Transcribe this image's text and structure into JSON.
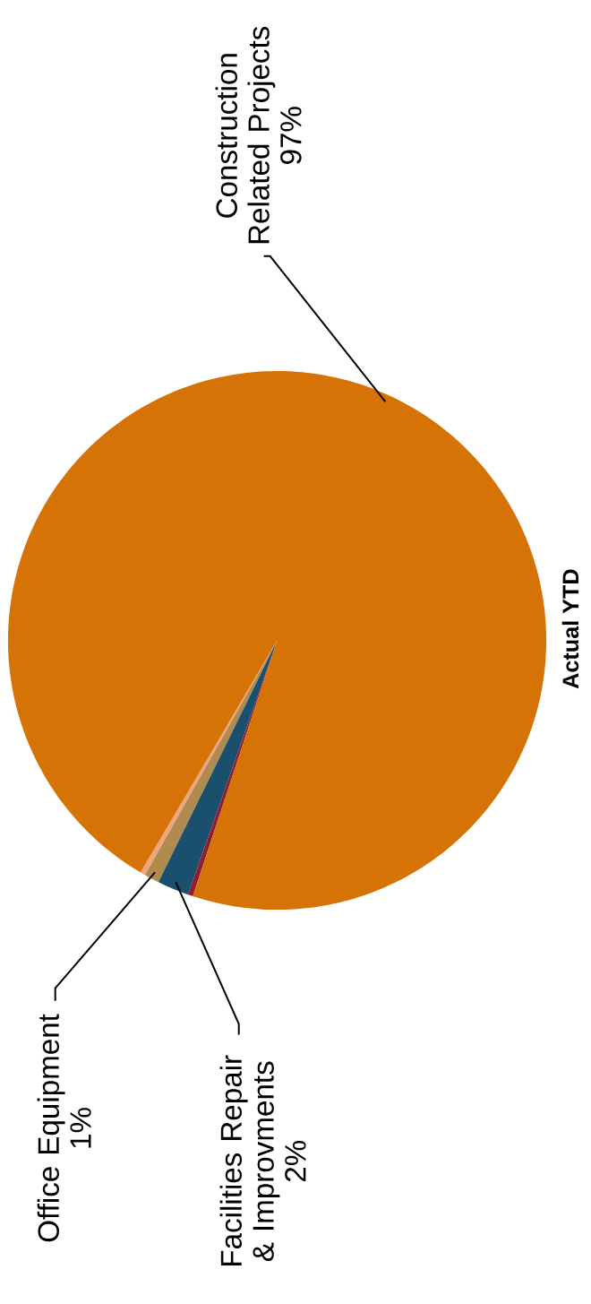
{
  "chart_data": {
    "type": "pie",
    "title": "Actual YTD",
    "categories": [
      null,
      "Office Equipment",
      "Facilities Repair & Improvments",
      null,
      "Construction Related Projects"
    ],
    "values": [
      0.3,
      0.9,
      1.9,
      0.3,
      96.6
    ],
    "value_labels": [
      null,
      "1%",
      "2%",
      null,
      "97%"
    ],
    "colors": [
      "#f0a582",
      "#b08a4e",
      "#1a4f6e",
      "#8e1d32",
      "#d57307"
    ]
  }
}
